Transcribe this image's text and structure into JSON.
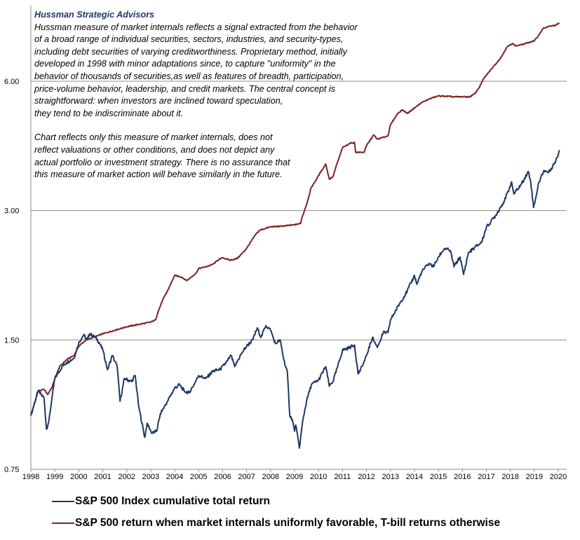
{
  "annotation": {
    "title": "Hussman Strategic Advisors",
    "paragraph1": "Hussman measure of market internals reflects a signal extracted from the behavior\nof a broad range of individual securities, sectors, industries, and security-types,\nincluding debt securities of varying creditworthiness. Proprietary method, initially\ndeveloped in 1998  with minor adaptations since, to capture \"uniformity\" in the\nbehavior of thousands of securities,as well as features of breadth, participation,\nprice-volume behavior, leadership, and credit markets. The central concept is\nstraightforward: when investors are inclined toward speculation,\nthey tend to be indiscriminate about it.",
    "paragraph2": "Chart reflects only this measure of market internals, does not\nreflect valuations  or other conditions, and does not depict any\nactual portfolio or investment strategy. There is no assurance that\nthis measure of market action will behave similarly in the future."
  },
  "chart_data": {
    "type": "line",
    "yscale": "log",
    "ylim": [
      0.75,
      9.0
    ],
    "xlim": [
      1998.0,
      2020.35
    ],
    "yticks": [
      0.75,
      1.5,
      3.0,
      6.0
    ],
    "ytick_labels": [
      "0.75",
      "1.50",
      "3.00",
      "6.00"
    ],
    "xticks": [
      1998,
      1999,
      2000,
      2001,
      2002,
      2003,
      2004,
      2005,
      2006,
      2007,
      2008,
      2009,
      2010,
      2011,
      2012,
      2013,
      2014,
      2015,
      2016,
      2017,
      2018,
      2019,
      2020
    ],
    "grid": "horizontal",
    "legend_position": "bottom",
    "series": [
      {
        "name": "S&P 500 Index cumulative total return",
        "color": "#1f3864",
        "points": [
          [
            1998.0,
            1.0
          ],
          [
            1998.3,
            1.14
          ],
          [
            1998.55,
            1.1
          ],
          [
            1998.65,
            0.93
          ],
          [
            1998.75,
            0.97
          ],
          [
            1998.9,
            1.12
          ],
          [
            1999.0,
            1.22
          ],
          [
            1999.3,
            1.3
          ],
          [
            1999.5,
            1.33
          ],
          [
            1999.8,
            1.36
          ],
          [
            2000.0,
            1.48
          ],
          [
            2000.2,
            1.54
          ],
          [
            2000.35,
            1.5
          ],
          [
            2000.45,
            1.55
          ],
          [
            2000.7,
            1.52
          ],
          [
            2000.85,
            1.48
          ],
          [
            2001.0,
            1.42
          ],
          [
            2001.2,
            1.28
          ],
          [
            2001.4,
            1.38
          ],
          [
            2001.6,
            1.3
          ],
          [
            2001.72,
            1.08
          ],
          [
            2001.9,
            1.22
          ],
          [
            2002.2,
            1.2
          ],
          [
            2002.35,
            1.24
          ],
          [
            2002.5,
            1.05
          ],
          [
            2002.75,
            0.89
          ],
          [
            2002.85,
            0.96
          ],
          [
            2003.05,
            0.91
          ],
          [
            2003.25,
            0.92
          ],
          [
            2003.4,
            1.01
          ],
          [
            2003.7,
            1.08
          ],
          [
            2004.0,
            1.16
          ],
          [
            2004.2,
            1.18
          ],
          [
            2004.4,
            1.14
          ],
          [
            2004.6,
            1.13
          ],
          [
            2004.8,
            1.18
          ],
          [
            2005.0,
            1.24
          ],
          [
            2005.3,
            1.22
          ],
          [
            2005.6,
            1.27
          ],
          [
            2005.9,
            1.28
          ],
          [
            2006.2,
            1.34
          ],
          [
            2006.35,
            1.38
          ],
          [
            2006.5,
            1.3
          ],
          [
            2006.8,
            1.4
          ],
          [
            2007.0,
            1.45
          ],
          [
            2007.25,
            1.5
          ],
          [
            2007.45,
            1.6
          ],
          [
            2007.6,
            1.52
          ],
          [
            2007.8,
            1.62
          ],
          [
            2008.0,
            1.58
          ],
          [
            2008.2,
            1.47
          ],
          [
            2008.4,
            1.5
          ],
          [
            2008.55,
            1.35
          ],
          [
            2008.7,
            1.26
          ],
          [
            2008.8,
            1.0
          ],
          [
            2008.9,
            0.98
          ],
          [
            2009.0,
            0.92
          ],
          [
            2009.05,
            0.95
          ],
          [
            2009.2,
            0.84
          ],
          [
            2009.35,
            0.98
          ],
          [
            2009.5,
            1.08
          ],
          [
            2009.7,
            1.18
          ],
          [
            2010.0,
            1.21
          ],
          [
            2010.3,
            1.3
          ],
          [
            2010.45,
            1.17
          ],
          [
            2010.6,
            1.2
          ],
          [
            2010.8,
            1.3
          ],
          [
            2011.0,
            1.42
          ],
          [
            2011.3,
            1.44
          ],
          [
            2011.5,
            1.46
          ],
          [
            2011.65,
            1.25
          ],
          [
            2011.85,
            1.31
          ],
          [
            2012.0,
            1.38
          ],
          [
            2012.25,
            1.52
          ],
          [
            2012.45,
            1.44
          ],
          [
            2012.7,
            1.56
          ],
          [
            2012.9,
            1.56
          ],
          [
            2013.0,
            1.67
          ],
          [
            2013.4,
            1.83
          ],
          [
            2013.7,
            1.95
          ],
          [
            2014.0,
            2.12
          ],
          [
            2014.1,
            2.02
          ],
          [
            2014.3,
            2.16
          ],
          [
            2014.6,
            2.26
          ],
          [
            2014.8,
            2.22
          ],
          [
            2015.0,
            2.34
          ],
          [
            2015.25,
            2.45
          ],
          [
            2015.5,
            2.42
          ],
          [
            2015.65,
            2.22
          ],
          [
            2015.9,
            2.34
          ],
          [
            2016.05,
            2.13
          ],
          [
            2016.25,
            2.39
          ],
          [
            2016.5,
            2.46
          ],
          [
            2016.8,
            2.53
          ],
          [
            2017.0,
            2.74
          ],
          [
            2017.4,
            2.93
          ],
          [
            2017.8,
            3.2
          ],
          [
            2018.05,
            3.5
          ],
          [
            2018.15,
            3.28
          ],
          [
            2018.45,
            3.45
          ],
          [
            2018.75,
            3.7
          ],
          [
            2018.85,
            3.5
          ],
          [
            2018.97,
            3.05
          ],
          [
            2019.2,
            3.5
          ],
          [
            2019.4,
            3.72
          ],
          [
            2019.6,
            3.68
          ],
          [
            2019.85,
            3.88
          ],
          [
            2020.0,
            4.05
          ],
          [
            2020.05,
            4.15
          ]
        ]
      },
      {
        "name": "S&P 500 return when market internals uniformly favorable, T-bill returns otherwise",
        "color": "#7b2323",
        "points": [
          [
            1998.0,
            1.0
          ],
          [
            1998.3,
            1.14
          ],
          [
            1998.55,
            1.15
          ],
          [
            1998.7,
            1.12
          ],
          [
            1998.9,
            1.17
          ],
          [
            1999.0,
            1.22
          ],
          [
            1999.2,
            1.3
          ],
          [
            1999.5,
            1.35
          ],
          [
            1999.8,
            1.38
          ],
          [
            2000.0,
            1.45
          ],
          [
            2000.3,
            1.5
          ],
          [
            2000.6,
            1.52
          ],
          [
            2001.0,
            1.55
          ],
          [
            2001.5,
            1.58
          ],
          [
            2002.0,
            1.61
          ],
          [
            2002.5,
            1.63
          ],
          [
            2003.0,
            1.65
          ],
          [
            2003.2,
            1.67
          ],
          [
            2003.3,
            1.74
          ],
          [
            2003.5,
            1.86
          ],
          [
            2003.7,
            1.95
          ],
          [
            2004.0,
            2.12
          ],
          [
            2004.3,
            2.1
          ],
          [
            2004.5,
            2.06
          ],
          [
            2004.6,
            2.08
          ],
          [
            2004.9,
            2.15
          ],
          [
            2005.0,
            2.2
          ],
          [
            2005.3,
            2.22
          ],
          [
            2005.6,
            2.25
          ],
          [
            2005.8,
            2.3
          ],
          [
            2006.0,
            2.33
          ],
          [
            2006.3,
            2.3
          ],
          [
            2006.6,
            2.32
          ],
          [
            2006.8,
            2.38
          ],
          [
            2007.0,
            2.45
          ],
          [
            2007.2,
            2.55
          ],
          [
            2007.4,
            2.65
          ],
          [
            2007.55,
            2.7
          ],
          [
            2007.8,
            2.73
          ],
          [
            2008.0,
            2.75
          ],
          [
            2008.5,
            2.76
          ],
          [
            2009.0,
            2.78
          ],
          [
            2009.25,
            2.8
          ],
          [
            2009.3,
            2.88
          ],
          [
            2009.5,
            3.1
          ],
          [
            2009.7,
            3.4
          ],
          [
            2009.85,
            3.5
          ],
          [
            2010.0,
            3.62
          ],
          [
            2010.3,
            3.85
          ],
          [
            2010.45,
            3.55
          ],
          [
            2010.6,
            3.6
          ],
          [
            2010.8,
            3.9
          ],
          [
            2011.0,
            4.2
          ],
          [
            2011.3,
            4.3
          ],
          [
            2011.5,
            4.32
          ],
          [
            2011.55,
            4.1
          ],
          [
            2011.9,
            4.1
          ],
          [
            2012.0,
            4.25
          ],
          [
            2012.3,
            4.5
          ],
          [
            2012.45,
            4.4
          ],
          [
            2012.75,
            4.45
          ],
          [
            2012.9,
            4.48
          ],
          [
            2013.0,
            4.75
          ],
          [
            2013.3,
            5.05
          ],
          [
            2013.5,
            5.15
          ],
          [
            2013.7,
            5.05
          ],
          [
            2014.0,
            5.2
          ],
          [
            2014.3,
            5.35
          ],
          [
            2014.6,
            5.45
          ],
          [
            2014.8,
            5.5
          ],
          [
            2015.0,
            5.55
          ],
          [
            2015.2,
            5.54
          ],
          [
            2015.5,
            5.53
          ],
          [
            2015.6,
            5.52
          ],
          [
            2016.0,
            5.52
          ],
          [
            2016.3,
            5.52
          ],
          [
            2016.5,
            5.6
          ],
          [
            2016.7,
            5.8
          ],
          [
            2016.9,
            6.1
          ],
          [
            2017.0,
            6.2
          ],
          [
            2017.3,
            6.5
          ],
          [
            2017.6,
            6.8
          ],
          [
            2017.85,
            7.2
          ],
          [
            2018.1,
            7.35
          ],
          [
            2018.2,
            7.25
          ],
          [
            2018.5,
            7.3
          ],
          [
            2018.8,
            7.4
          ],
          [
            2019.0,
            7.45
          ],
          [
            2019.2,
            7.7
          ],
          [
            2019.35,
            7.95
          ],
          [
            2019.6,
            8.05
          ],
          [
            2019.9,
            8.1
          ],
          [
            2020.05,
            8.2
          ]
        ]
      }
    ]
  },
  "legend": [
    {
      "label": "S&P 500 Index cumulative total return",
      "color": "#1f3864"
    },
    {
      "label": "S&P 500 return when market internals uniformly favorable, T-bill returns otherwise",
      "color": "#7b2323"
    }
  ]
}
